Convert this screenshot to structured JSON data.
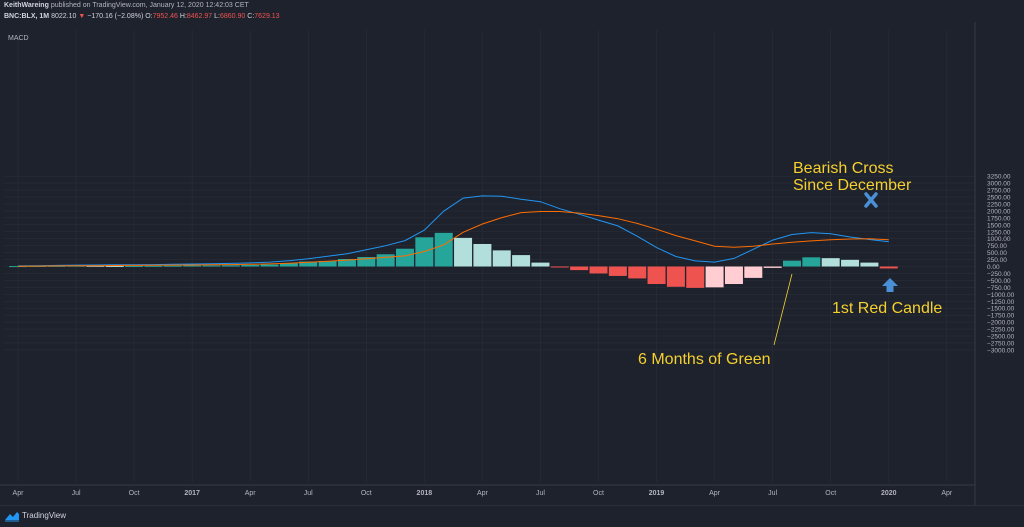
{
  "header": {
    "publisher": "KeithWareing",
    "published_text": "published on TradingView.com, January 12, 2020 12:42:03 CET",
    "symbol": "BNC:BLX, 1M",
    "price": "8022.10",
    "change": "−170.16 (−2.08%)",
    "open_label": "O:",
    "open": "7952.46",
    "high_label": "H:",
    "high": "8462.97",
    "low_label": "L:",
    "low": "6860.90",
    "close_label": "C:",
    "close": "7629.13"
  },
  "indicator_label": "MACD",
  "footer": {
    "brand": "TradingView"
  },
  "colors": {
    "background": "#1e222d",
    "grid": "#2a2e39",
    "macd_line": "#2196f3",
    "signal_line": "#ff6d00",
    "hist_pos_growing": "#26a69a",
    "hist_pos_falling": "#b2dfdb",
    "hist_neg_growing": "#ef5350",
    "hist_neg_falling": "#ffcdd2",
    "annotation_text": "#f5d02f",
    "annotation_arrow": "#4a90d9"
  },
  "chart_data": {
    "type": "bar",
    "title": "MACD",
    "ylim": [
      -3000,
      3250
    ],
    "y_ticks": [
      3250,
      3000,
      2750,
      2500,
      2250,
      2000,
      1750,
      1500,
      1250,
      1000,
      750,
      500,
      250,
      0,
      -250,
      -500,
      -750,
      -1000,
      -1250,
      -1500,
      -1750,
      -2000,
      -2250,
      -2500,
      -2750,
      -3000
    ],
    "y_tick_labels": [
      "3250.00",
      "3000.00",
      "2750.00",
      "2500.00",
      "2250.00",
      "2000.00",
      "1750.00",
      "1500.00",
      "1250.00",
      "1000.00",
      "750.00",
      "500.00",
      "250.00",
      "0.00",
      "−250.00",
      "−500.00",
      "−750.00",
      "−1000.00",
      "−1250.00",
      "−1500.00",
      "−1750.00",
      "−2000.00",
      "−2250.00",
      "−2500.00",
      "−2750.00",
      "−3000.00"
    ],
    "x_ticks": [
      {
        "label": "Apr",
        "index": 0,
        "bold": false
      },
      {
        "label": "Jul",
        "index": 3,
        "bold": false
      },
      {
        "label": "Oct",
        "index": 6,
        "bold": false
      },
      {
        "label": "2017",
        "index": 9,
        "bold": true
      },
      {
        "label": "Apr",
        "index": 12,
        "bold": false
      },
      {
        "label": "Jul",
        "index": 15,
        "bold": false
      },
      {
        "label": "Oct",
        "index": 18,
        "bold": false
      },
      {
        "label": "2018",
        "index": 21,
        "bold": true
      },
      {
        "label": "Apr",
        "index": 24,
        "bold": false
      },
      {
        "label": "Jul",
        "index": 27,
        "bold": false
      },
      {
        "label": "Oct",
        "index": 30,
        "bold": false
      },
      {
        "label": "2019",
        "index": 33,
        "bold": true
      },
      {
        "label": "Apr",
        "index": 36,
        "bold": false
      },
      {
        "label": "Jul",
        "index": 39,
        "bold": false
      },
      {
        "label": "Oct",
        "index": 42,
        "bold": false
      },
      {
        "label": "2020",
        "index": 45,
        "bold": true
      },
      {
        "label": "Apr",
        "index": 48,
        "bold": false
      }
    ],
    "categories": [
      "2016-04",
      "2016-05",
      "2016-06",
      "2016-07",
      "2016-08",
      "2016-09",
      "2016-10",
      "2016-11",
      "2016-12",
      "2017-01",
      "2017-02",
      "2017-03",
      "2017-04",
      "2017-05",
      "2017-06",
      "2017-07",
      "2017-08",
      "2017-09",
      "2017-10",
      "2017-11",
      "2017-12",
      "2018-01",
      "2018-02",
      "2018-03",
      "2018-04",
      "2018-05",
      "2018-06",
      "2018-07",
      "2018-08",
      "2018-09",
      "2018-10",
      "2018-11",
      "2018-12",
      "2019-01",
      "2019-02",
      "2019-03",
      "2019-04",
      "2019-05",
      "2019-06",
      "2019-07",
      "2019-08",
      "2019-09",
      "2019-10",
      "2019-11",
      "2019-12",
      "2020-01"
    ],
    "histogram": [
      15,
      20,
      25,
      30,
      25,
      20,
      20,
      25,
      30,
      35,
      40,
      45,
      55,
      70,
      120,
      180,
      200,
      270,
      340,
      440,
      640,
      1050,
      1210,
      1030,
      810,
      580,
      410,
      140,
      -20,
      -130,
      -250,
      -340,
      -430,
      -630,
      -730,
      -770,
      -750,
      -630,
      -410,
      -50,
      210,
      330,
      300,
      240,
      140,
      -70
    ],
    "series": [
      {
        "name": "MACD",
        "values": [
          20,
          30,
          40,
          50,
          55,
          60,
          65,
          70,
          80,
          90,
          100,
          110,
          130,
          160,
          210,
          280,
          370,
          460,
          600,
          750,
          930,
          1310,
          1990,
          2460,
          2540,
          2530,
          2420,
          2330,
          2080,
          1880,
          1670,
          1460,
          1090,
          680,
          360,
          200,
          160,
          290,
          620,
          950,
          1150,
          1220,
          1180,
          1060,
          970,
          890
        ]
      },
      {
        "name": "Signal",
        "values": [
          10,
          15,
          20,
          25,
          30,
          35,
          40,
          45,
          50,
          55,
          60,
          70,
          80,
          95,
          120,
          150,
          190,
          230,
          280,
          330,
          380,
          540,
          780,
          1230,
          1530,
          1760,
          1940,
          1980,
          1980,
          1920,
          1830,
          1720,
          1550,
          1340,
          1110,
          920,
          730,
          690,
          730,
          810,
          870,
          920,
          960,
          990,
          1000,
          960
        ]
      }
    ],
    "grid": true,
    "legend": "none"
  },
  "annotations": {
    "bearish_line1": "Bearish Cross",
    "bearish_line2": "Since December",
    "red_candle": "1st Red Candle",
    "green_months": "6 Months of Green"
  }
}
